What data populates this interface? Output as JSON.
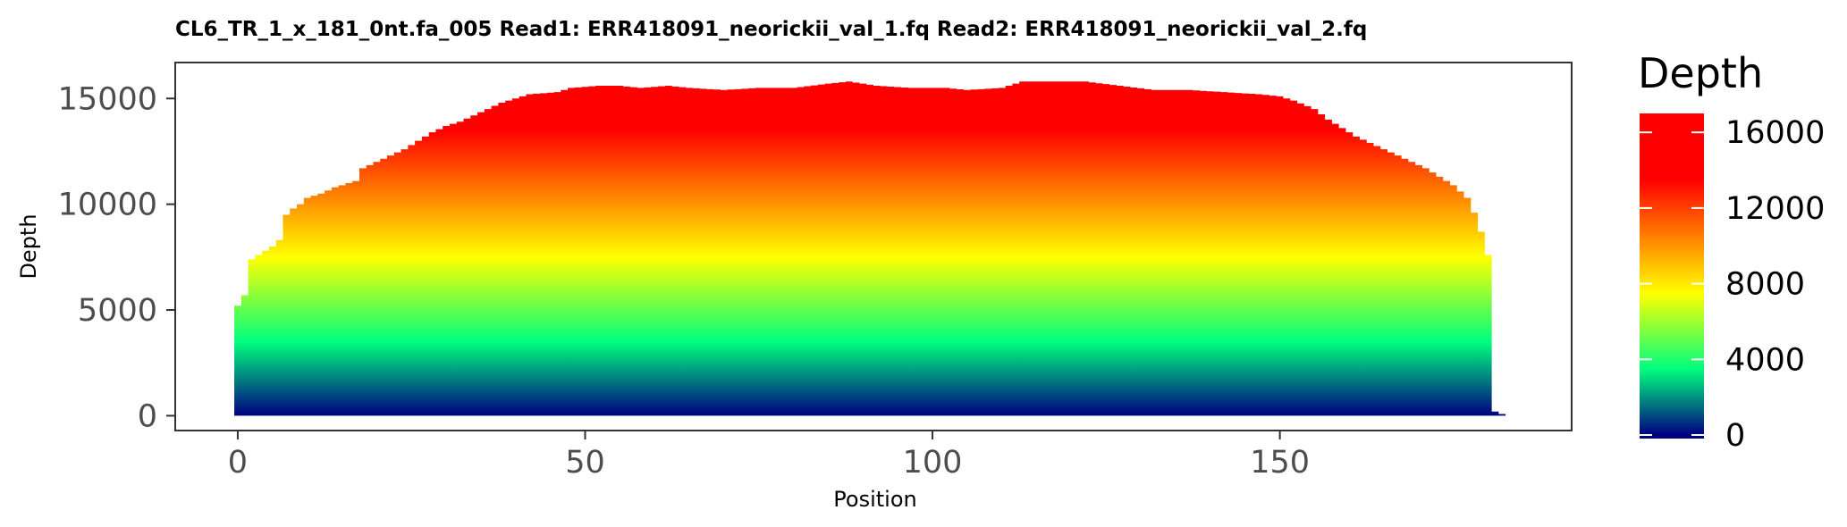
{
  "chart_data": {
    "type": "area",
    "title": "CL6_TR_1_x_181_0nt.fa_005   Read1: ERR418091_neorickii_val_1.fq   Read2: ERR418091_neorickii_val_2.fq",
    "xlabel": "Position",
    "ylabel": "Depth",
    "xlim": [
      -9,
      192
    ],
    "ylim": [
      -700,
      16700
    ],
    "x_ticks": [
      0,
      50,
      100,
      150
    ],
    "y_ticks": [
      0,
      5000,
      10000,
      15000
    ],
    "grid": false,
    "x_key_points": [
      [
        0,
        5200
      ],
      [
        1,
        5700
      ],
      [
        2,
        7400
      ],
      [
        3,
        7600
      ],
      [
        4,
        7800
      ],
      [
        5,
        8000
      ],
      [
        6,
        8300
      ],
      [
        7,
        9500
      ],
      [
        8,
        9800
      ],
      [
        9,
        10000
      ],
      [
        10,
        10300
      ],
      [
        12,
        10500
      ],
      [
        14,
        10800
      ],
      [
        17,
        11100
      ],
      [
        18,
        11700
      ],
      [
        20,
        12000
      ],
      [
        22,
        12300
      ],
      [
        24,
        12600
      ],
      [
        26,
        13000
      ],
      [
        28,
        13400
      ],
      [
        30,
        13700
      ],
      [
        32,
        13900
      ],
      [
        34,
        14200
      ],
      [
        36,
        14500
      ],
      [
        38,
        14800
      ],
      [
        40,
        15000
      ],
      [
        42,
        15200
      ],
      [
        46,
        15300
      ],
      [
        48,
        15500
      ],
      [
        52,
        15600
      ],
      [
        55,
        15600
      ],
      [
        58,
        15500
      ],
      [
        62,
        15600
      ],
      [
        65,
        15500
      ],
      [
        70,
        15400
      ],
      [
        75,
        15500
      ],
      [
        80,
        15500
      ],
      [
        85,
        15700
      ],
      [
        88,
        15800
      ],
      [
        92,
        15600
      ],
      [
        97,
        15500
      ],
      [
        102,
        15500
      ],
      [
        105,
        15400
      ],
      [
        110,
        15500
      ],
      [
        113,
        15800
      ],
      [
        117,
        15800
      ],
      [
        122,
        15800
      ],
      [
        127,
        15600
      ],
      [
        132,
        15400
      ],
      [
        137,
        15400
      ],
      [
        142,
        15300
      ],
      [
        147,
        15200
      ],
      [
        150,
        15100
      ],
      [
        152,
        14900
      ],
      [
        155,
        14500
      ],
      [
        157,
        14000
      ],
      [
        159,
        13600
      ],
      [
        161,
        13200
      ],
      [
        163,
        12900
      ],
      [
        165,
        12600
      ],
      [
        167,
        12300
      ],
      [
        169,
        12000
      ],
      [
        171,
        11700
      ],
      [
        173,
        11300
      ],
      [
        175,
        10900
      ],
      [
        177,
        10300
      ],
      [
        178,
        9600
      ],
      [
        179,
        8700
      ],
      [
        180,
        7600
      ],
      [
        181,
        200
      ],
      [
        182,
        80
      ],
      [
        183,
        0
      ]
    ],
    "colorscale": {
      "name": "Depth",
      "min": 0,
      "max": 17000,
      "ticks": [
        0,
        4000,
        8000,
        12000,
        16000
      ],
      "stops": [
        {
          "value": 0,
          "color": "#000080"
        },
        {
          "value": 3500,
          "color": "#00ff7f"
        },
        {
          "value": 7500,
          "color": "#ffff00"
        },
        {
          "value": 13500,
          "color": "#ff0000"
        },
        {
          "value": 17000,
          "color": "#ff0000"
        }
      ]
    }
  }
}
